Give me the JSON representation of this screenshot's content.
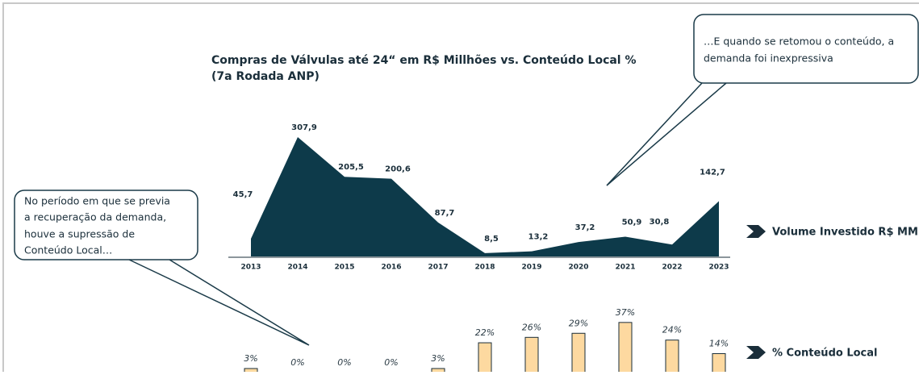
{
  "chart_data": [
    {
      "type": "area",
      "title_lines": [
        "Compras de Válvulas até 24“ em R$ Millhões vs. Conteúdo Local %",
        "(7a Rodada ANP)"
      ],
      "categories": [
        "2013",
        "2014",
        "2015",
        "2016",
        "2017",
        "2018",
        "2019",
        "2020",
        "2021",
        "2022",
        "2023"
      ],
      "series": [
        {
          "name": "Volume Investido R$ MM",
          "color": "#0d3a4a",
          "values": [
            45.7,
            307.9,
            205.5,
            200.6,
            87.7,
            8.5,
            13.2,
            37.2,
            50.9,
            30.8,
            142.7
          ],
          "value_labels": [
            "45,7",
            "307,9",
            "205,5",
            "200,6",
            "87,7",
            "8,5",
            "13,2",
            "37,2",
            "50,9",
            "30,8",
            "142,7"
          ]
        }
      ]
    },
    {
      "type": "bar",
      "series": [
        {
          "name": "% Conteúdo Local",
          "color": "#fdd9a0",
          "values": [
            3,
            0,
            0,
            0,
            3,
            22,
            26,
            29,
            37,
            24,
            14
          ],
          "value_labels": [
            "3%",
            "0%",
            "0%",
            "0%",
            "3%",
            "22%",
            "26%",
            "29%",
            "37%",
            "24%",
            "14%"
          ]
        }
      ]
    }
  ],
  "callouts": [
    {
      "lines": [
        "…E quando se retomou o conteúdo, a",
        "demanda foi inexpressiva"
      ]
    },
    {
      "lines": [
        "No período em que se previa",
        "a recuperação da demanda,",
        "houve a supressão de",
        "Conteúdo Local…"
      ]
    }
  ]
}
